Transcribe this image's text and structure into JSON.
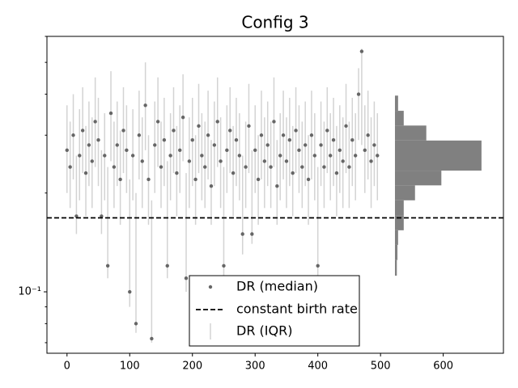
{
  "chart_data": {
    "type": "scatter",
    "title": "Config 3",
    "x": [
      0,
      5,
      10,
      15,
      20,
      25,
      30,
      35,
      40,
      45,
      50,
      55,
      60,
      65,
      70,
      75,
      80,
      85,
      90,
      95,
      100,
      105,
      110,
      115,
      120,
      125,
      130,
      135,
      140,
      145,
      150,
      155,
      160,
      165,
      170,
      175,
      180,
      185,
      190,
      195,
      200,
      205,
      210,
      215,
      220,
      225,
      230,
      235,
      240,
      245,
      250,
      255,
      260,
      265,
      270,
      275,
      280,
      285,
      290,
      295,
      300,
      305,
      310,
      315,
      320,
      325,
      330,
      335,
      340,
      345,
      350,
      355,
      360,
      365,
      370,
      375,
      380,
      385,
      390,
      395,
      400,
      405,
      410,
      415,
      420,
      425,
      430,
      435,
      440,
      445,
      450,
      455,
      460,
      465,
      470,
      475,
      480,
      485,
      490,
      495
    ],
    "series": [
      {
        "name": "DR (median)",
        "color": "#666666",
        "values": [
          0.27,
          0.24,
          0.3,
          0.17,
          0.26,
          0.31,
          0.23,
          0.28,
          0.25,
          0.33,
          0.29,
          0.17,
          0.26,
          0.12,
          0.35,
          0.24,
          0.28,
          0.22,
          0.31,
          0.27,
          0.1,
          0.26,
          0.08,
          0.3,
          0.25,
          0.37,
          0.22,
          0.072,
          0.28,
          0.33,
          0.24,
          0.29,
          0.12,
          0.26,
          0.31,
          0.23,
          0.27,
          0.34,
          0.11,
          0.25,
          0.29,
          0.22,
          0.32,
          0.26,
          0.24,
          0.3,
          0.21,
          0.28,
          0.33,
          0.25,
          0.12,
          0.27,
          0.31,
          0.23,
          0.29,
          0.26,
          0.15,
          0.24,
          0.32,
          0.15,
          0.27,
          0.22,
          0.3,
          0.25,
          0.28,
          0.24,
          0.33,
          0.21,
          0.26,
          0.3,
          0.25,
          0.29,
          0.23,
          0.31,
          0.27,
          0.24,
          0.28,
          0.22,
          0.3,
          0.26,
          0.12,
          0.28,
          0.24,
          0.31,
          0.26,
          0.29,
          0.23,
          0.27,
          0.25,
          0.32,
          0.24,
          0.29,
          0.26,
          0.4,
          0.54,
          0.27,
          0.3,
          0.25,
          0.28,
          0.26
        ]
      },
      {
        "name": "DR (IQR)",
        "color": "#d3d3d3",
        "low": [
          0.2,
          0.18,
          0.22,
          0.15,
          0.19,
          0.23,
          0.17,
          0.21,
          0.18,
          0.24,
          0.21,
          0.15,
          0.19,
          0.11,
          0.25,
          0.18,
          0.21,
          0.16,
          0.23,
          0.2,
          0.09,
          0.19,
          0.075,
          0.22,
          0.18,
          0.27,
          0.16,
          0.07,
          0.2,
          0.24,
          0.18,
          0.21,
          0.11,
          0.19,
          0.23,
          0.17,
          0.2,
          0.25,
          0.1,
          0.18,
          0.21,
          0.16,
          0.23,
          0.19,
          0.18,
          0.22,
          0.16,
          0.21,
          0.24,
          0.18,
          0.11,
          0.2,
          0.23,
          0.17,
          0.21,
          0.19,
          0.13,
          0.18,
          0.23,
          0.14,
          0.2,
          0.16,
          0.22,
          0.18,
          0.21,
          0.18,
          0.24,
          0.16,
          0.19,
          0.22,
          0.18,
          0.21,
          0.17,
          0.23,
          0.2,
          0.18,
          0.21,
          0.16,
          0.22,
          0.19,
          0.11,
          0.21,
          0.18,
          0.23,
          0.19,
          0.21,
          0.17,
          0.2,
          0.18,
          0.23,
          0.18,
          0.21,
          0.19,
          0.29,
          0.28,
          0.2,
          0.22,
          0.18,
          0.21,
          0.19
        ],
        "high": [
          0.37,
          0.33,
          0.4,
          0.26,
          0.36,
          0.42,
          0.32,
          0.38,
          0.34,
          0.45,
          0.39,
          0.27,
          0.35,
          0.24,
          0.47,
          0.33,
          0.38,
          0.31,
          0.42,
          0.37,
          0.22,
          0.36,
          0.2,
          0.41,
          0.34,
          0.5,
          0.3,
          0.19,
          0.38,
          0.45,
          0.33,
          0.39,
          0.25,
          0.35,
          0.42,
          0.32,
          0.37,
          0.46,
          0.23,
          0.34,
          0.39,
          0.3,
          0.43,
          0.35,
          0.33,
          0.41,
          0.29,
          0.38,
          0.45,
          0.34,
          0.24,
          0.37,
          0.42,
          0.32,
          0.39,
          0.35,
          0.26,
          0.33,
          0.43,
          0.27,
          0.37,
          0.3,
          0.41,
          0.34,
          0.38,
          0.33,
          0.45,
          0.29,
          0.35,
          0.41,
          0.34,
          0.39,
          0.32,
          0.42,
          0.37,
          0.33,
          0.38,
          0.3,
          0.41,
          0.35,
          0.24,
          0.38,
          0.33,
          0.42,
          0.35,
          0.39,
          0.32,
          0.37,
          0.34,
          0.43,
          0.33,
          0.39,
          0.35,
          0.48,
          0.55,
          0.37,
          0.41,
          0.34,
          0.38,
          0.35
        ]
      }
    ],
    "hline": {
      "name": "constant birth rate",
      "value": 0.168,
      "color": "#000000"
    },
    "histogram": {
      "bins": [
        0.112,
        0.125,
        0.139,
        0.154,
        0.171,
        0.19,
        0.211,
        0.234,
        0.26,
        0.289,
        0.321,
        0.356,
        0.396
      ],
      "counts": [
        3,
        4,
        5,
        14,
        14,
        32,
        74,
        138,
        138,
        50,
        14,
        5
      ],
      "offset": 523,
      "color": "#808080"
    },
    "xlim": [
      -32,
      696
    ],
    "xticks": [
      0,
      100,
      200,
      300,
      400,
      500,
      600
    ],
    "ylim": [
      0.065,
      0.6
    ],
    "yscale": "log",
    "yticks": [
      {
        "value": 0.1,
        "label": "10⁻¹"
      }
    ],
    "yminor_ticks": [
      0.07,
      0.08,
      0.09,
      0.2,
      0.3,
      0.4,
      0.5,
      0.6
    ]
  }
}
